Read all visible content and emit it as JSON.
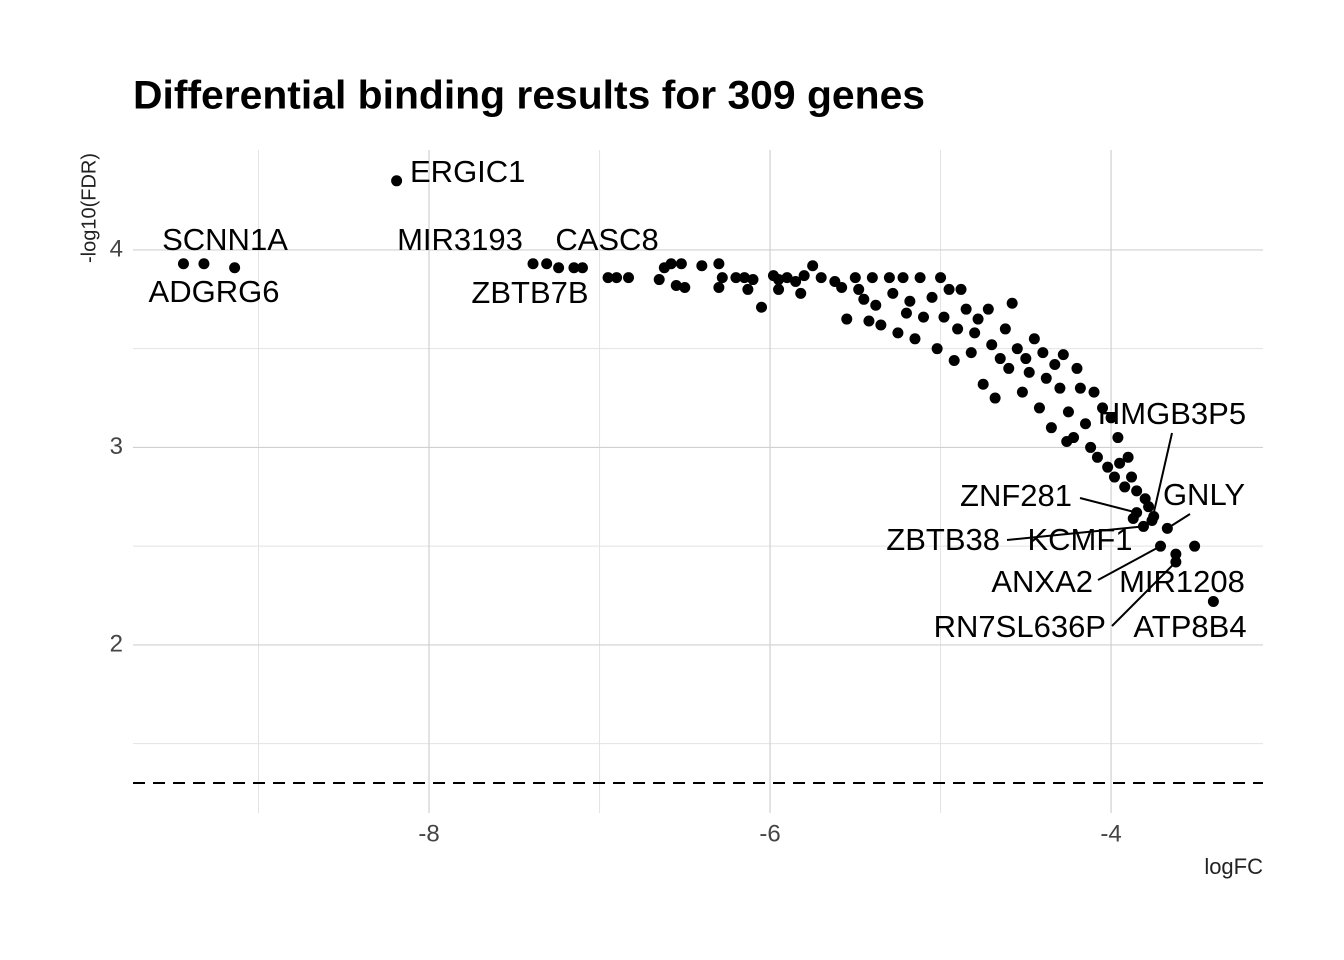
{
  "chart_data": {
    "type": "scatter",
    "title": "Differential binding results for 309 genes",
    "x_label": "logFC",
    "y_label": "-log10(FDR)",
    "color": "#000000",
    "grid": true,
    "xlim": [
      -9.736,
      -3.109
    ],
    "ylim": [
      1.149,
      4.506
    ],
    "xticks": [
      -8,
      -6,
      -4
    ],
    "yticks": [
      2,
      3,
      4
    ],
    "xminor": [
      -9,
      -7,
      -5
    ],
    "yminor": [
      1.5,
      2.5,
      3.5
    ],
    "threshold": 1.301,
    "x": [
      -9.14,
      -7.15,
      -7.1,
      -6.95,
      -6.9,
      -6.83,
      -6.65,
      -6.62,
      -6.58,
      -6.55,
      -6.5,
      -6.52,
      -6.4,
      -6.3,
      -6.28,
      -6.3,
      -6.2,
      -6.15,
      -6.1,
      -6.13,
      -6.05,
      -5.98,
      -5.95,
      -5.95,
      -5.9,
      -5.85,
      -5.8,
      -5.82,
      -5.75,
      -5.7,
      -5.62,
      -5.58,
      -5.55,
      -5.5,
      -5.48,
      -5.45,
      -5.42,
      -5.4,
      -5.38,
      -5.35,
      -5.3,
      -5.28,
      -5.25,
      -5.22,
      -5.2,
      -5.18,
      -5.15,
      -5.12,
      -5.1,
      -5.05,
      -5.02,
      -5.0,
      -4.98,
      -4.95,
      -4.92,
      -4.9,
      -4.88,
      -4.85,
      -4.82,
      -4.8,
      -4.78,
      -4.75,
      -4.72,
      -4.7,
      -4.68,
      -4.65,
      -4.62,
      -4.6,
      -4.58,
      -4.55,
      -4.52,
      -4.5,
      -4.48,
      -4.45,
      -4.42,
      -4.4,
      -4.38,
      -4.35,
      -4.33,
      -4.3,
      -4.28,
      -4.26,
      -4.25,
      -4.22,
      -4.2,
      -4.18,
      -4.15,
      -4.12,
      -4.1,
      -4.08,
      -4.05,
      -4.02,
      -4.0,
      -3.98,
      -3.96,
      -3.95,
      -3.92,
      -3.9,
      -3.88,
      -3.85,
      -3.8,
      -3.78,
      -3.75,
      -3.51
    ],
    "y": [
      3.91,
      3.91,
      3.91,
      3.86,
      3.86,
      3.86,
      3.85,
      3.91,
      3.93,
      3.82,
      3.81,
      3.93,
      3.92,
      3.93,
      3.86,
      3.81,
      3.86,
      3.86,
      3.85,
      3.8,
      3.71,
      3.87,
      3.85,
      3.8,
      3.86,
      3.84,
      3.87,
      3.78,
      3.92,
      3.86,
      3.84,
      3.81,
      3.65,
      3.86,
      3.8,
      3.75,
      3.64,
      3.86,
      3.72,
      3.62,
      3.86,
      3.78,
      3.58,
      3.86,
      3.68,
      3.74,
      3.55,
      3.86,
      3.66,
      3.76,
      3.5,
      3.86,
      3.66,
      3.8,
      3.44,
      3.6,
      3.8,
      3.7,
      3.48,
      3.58,
      3.65,
      3.32,
      3.7,
      3.52,
      3.25,
      3.45,
      3.6,
      3.4,
      3.73,
      3.5,
      3.28,
      3.45,
      3.38,
      3.55,
      3.2,
      3.48,
      3.35,
      3.1,
      3.42,
      3.3,
      3.47,
      3.03,
      3.18,
      3.05,
      3.4,
      3.3,
      3.12,
      3.0,
      3.28,
      2.95,
      3.2,
      2.9,
      3.15,
      2.85,
      3.05,
      2.92,
      2.8,
      2.95,
      2.85,
      2.78,
      2.74,
      2.7,
      2.65,
      2.5
    ],
    "labeled_points": [
      {
        "text": "ERGIC1",
        "x": -8.19,
        "y": 4.35
      },
      {
        "text": "SCNN1A",
        "x": -9.44,
        "y": 3.93
      },
      {
        "text": "ADGRG6",
        "x": -9.32,
        "y": 3.93
      },
      {
        "text": "MIR3193",
        "x": -7.39,
        "y": 3.93
      },
      {
        "text": "CASC8",
        "x": -7.31,
        "y": 3.93
      },
      {
        "text": "ZBTB7B",
        "x": -7.24,
        "y": 3.91
      },
      {
        "text": "HMGB3P5",
        "x": -3.76,
        "y": 2.63
      },
      {
        "text": "ZNF281",
        "x": -3.85,
        "y": 2.67
      },
      {
        "text": "GNLY",
        "x": -3.67,
        "y": 2.59
      },
      {
        "text": "ZBTB38",
        "x": -3.81,
        "y": 2.6
      },
      {
        "text": "KCMF1",
        "x": -3.87,
        "y": 2.64
      },
      {
        "text": "ANXA2",
        "x": -3.71,
        "y": 2.5
      },
      {
        "text": "MIR1208",
        "x": -3.62,
        "y": 2.46
      },
      {
        "text": "RN7SL636P",
        "x": -3.62,
        "y": 2.42
      },
      {
        "text": "ATP8B4",
        "x": -3.4,
        "y": 2.22
      }
    ]
  }
}
